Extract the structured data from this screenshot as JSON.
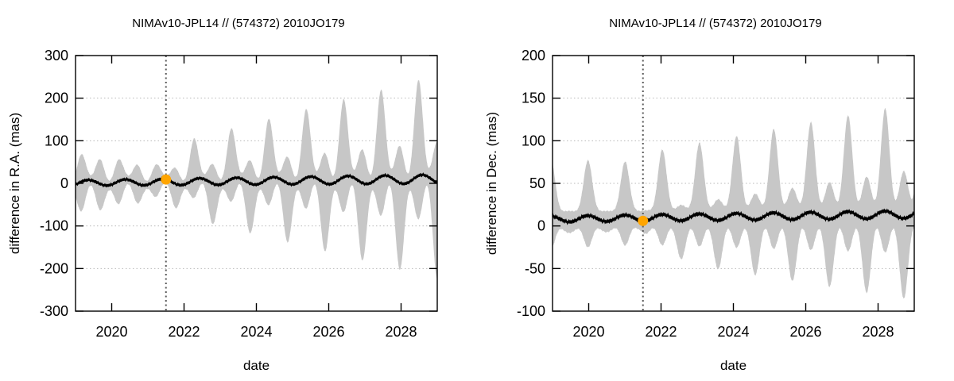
{
  "chart_data": {
    "type": "area",
    "x_unit": "decimal year",
    "grid": "horizontal-dotted",
    "legend": "none",
    "colors": {
      "envelope_fill": "#c7c7c7",
      "center_line": "#000000",
      "epoch_line": "#5a5a5a",
      "gridline": "#b8b8b8",
      "marker": "#ffa500",
      "border": "#000000"
    },
    "panels": [
      {
        "title": "NIMAv10-JPL14 // (574372) 2010JO179",
        "xlabel": "date",
        "ylabel": "difference in R.A. (mas)",
        "xlim": [
          2019,
          2029
        ],
        "ylim": [
          -300,
          300
        ],
        "xticks": [
          2020,
          2022,
          2024,
          2026,
          2028
        ],
        "yticks": [
          300,
          200,
          100,
          0,
          -100,
          -200,
          -300
        ],
        "epoch_vline_x": 2021.5,
        "marker": {
          "x": 2021.5,
          "y": 9,
          "color": "#ffa500",
          "radius_px": 6.5
        },
        "center_line": {
          "color": "#000000",
          "mean_base_mas": 1.0,
          "mean_slope_mas_per_yr": 0.9,
          "amp_base_mas": 6.5,
          "amp_slope_mas_per_yr": 0.4,
          "period_yr": 1.026,
          "peak_ref_yr": 2019.35,
          "jitter_mas": 1.5
        },
        "envelope": {
          "fill": "#c7c7c7",
          "period_yr": 1.035,
          "lobe_exponent": 4,
          "min_halfwidth_mas": 5,
          "growth_epoch_yr": 2021.45,
          "trains": [
            {
              "side": "upper",
              "peak_ref": 2019.165,
              "base": 30,
              "bwd_slope": 13,
              "fwd_fast_slope": 75,
              "fwd_offset": 46,
              "fwd_slope": 20.5
            },
            {
              "side": "upper",
              "peak_ref": 2019.6825,
              "base": 30,
              "bwd_slope": 13,
              "fwd_fast_slope": 8,
              "fwd_offset": 0,
              "fwd_slope": 8
            },
            {
              "side": "lower",
              "peak_ref": 2019.6825,
              "base": 30,
              "bwd_slope": 15,
              "fwd_fast_slope": 70,
              "fwd_offset": 32,
              "fwd_slope": 21
            },
            {
              "side": "lower",
              "peak_ref": 2019.165,
              "base": 30,
              "bwd_slope": 15,
              "fwd_fast_slope": 9.5,
              "fwd_offset": 0,
              "fwd_slope": 9.5
            }
          ]
        },
        "observed_extremes_mas": {
          "upper_peaks": [
            [
              2019.2,
              60
            ],
            [
              2019.7,
              63
            ],
            [
              2020.3,
              74
            ],
            [
              2020.8,
              60
            ],
            [
              2021.3,
              37
            ],
            [
              2022.3,
              97
            ],
            [
              2023.3,
              112
            ],
            [
              2024.3,
              134
            ],
            [
              2025.4,
              149
            ],
            [
              2026.4,
              173
            ],
            [
              2027.5,
              194
            ],
            [
              2028.5,
              218
            ]
          ],
          "lower_dips": [
            [
              2019.3,
              -55
            ],
            [
              2019.8,
              -65
            ],
            [
              2020.3,
              -69
            ],
            [
              2020.9,
              -57
            ],
            [
              2021.4,
              -33
            ],
            [
              2022.4,
              -89
            ],
            [
              2023.9,
              -130
            ],
            [
              2024.9,
              -145
            ],
            [
              2025.9,
              -160
            ],
            [
              2026.9,
              -173
            ],
            [
              2027.9,
              -190
            ],
            [
              2028.9,
              -208
            ]
          ],
          "pinch_halfwidth": 10
        }
      },
      {
        "title": "NIMAv10-JPL14 // (574372) 2010JO179",
        "xlabel": "date",
        "ylabel": "difference in Dec. (mas)",
        "xlim": [
          2019,
          2029
        ],
        "ylim": [
          -100,
          200
        ],
        "xticks": [
          2020,
          2022,
          2024,
          2026,
          2028
        ],
        "yticks": [
          200,
          150,
          100,
          50,
          0,
          -50,
          -100
        ],
        "epoch_vline_x": 2021.5,
        "marker": {
          "x": 2021.5,
          "y": 6,
          "color": "#ffa500",
          "radius_px": 6.5
        },
        "center_line": {
          "color": "#000000",
          "mean_base_mas": 8.0,
          "mean_slope_mas_per_yr": 0.55,
          "amp_base_mas": 3.5,
          "amp_slope_mas_per_yr": 0.1,
          "period_yr": 1.026,
          "peak_ref_yr": 2019.98,
          "jitter_mas": 1.0
        },
        "envelope": {
          "fill": "#c7c7c7",
          "period_yr": 1.027,
          "lobe_exponent": 4,
          "min_halfwidth_mas": 10,
          "growth_epoch_yr": 2021.45,
          "trains": [
            {
              "side": "upper",
              "peak_ref": 2019.98,
              "base": 52,
              "bwd_slope": 2,
              "fwd_fast_slope": 30,
              "fwd_offset": 10,
              "fwd_slope": 7.2
            },
            {
              "side": "upper",
              "peak_ref": 2020.4935,
              "base": 2,
              "bwd_slope": 0.5,
              "fwd_fast_slope": 6,
              "fwd_offset": 0,
              "fwd_slope": 6
            },
            {
              "side": "lower",
              "peak_ref": 2020.4935,
              "base": 2,
              "bwd_slope": 0.5,
              "fwd_fast_slope": 30,
              "fwd_offset": 30,
              "fwd_slope": 7.2
            },
            {
              "side": "lower",
              "peak_ref": 2019.98,
              "base": 25,
              "bwd_slope": 1.5,
              "fwd_fast_slope": 2,
              "fwd_offset": 0,
              "fwd_slope": 2
            }
          ]
        },
        "observed_extremes_mas": {
          "upper_peaks": [
            [
              2019.0,
              65
            ],
            [
              2020.0,
              68
            ],
            [
              2021.0,
              70
            ],
            [
              2022.0,
              74
            ],
            [
              2023.0,
              84
            ],
            [
              2024.1,
              87
            ],
            [
              2025.1,
              95
            ],
            [
              2026.1,
              104
            ],
            [
              2027.2,
              112
            ],
            [
              2028.2,
              119
            ],
            [
              2029.0,
              130
            ]
          ],
          "lower_dips": [
            [
              2019.0,
              -45
            ],
            [
              2020.0,
              -40
            ],
            [
              2021.0,
              -45
            ],
            [
              2022.5,
              -50
            ],
            [
              2023.1,
              -67
            ],
            [
              2024.7,
              -72
            ],
            [
              2025.7,
              -78
            ],
            [
              2026.8,
              -83
            ],
            [
              2027.8,
              -88
            ],
            [
              2028.5,
              -93
            ]
          ],
          "pinch_halfwidth": 11
        }
      }
    ]
  }
}
